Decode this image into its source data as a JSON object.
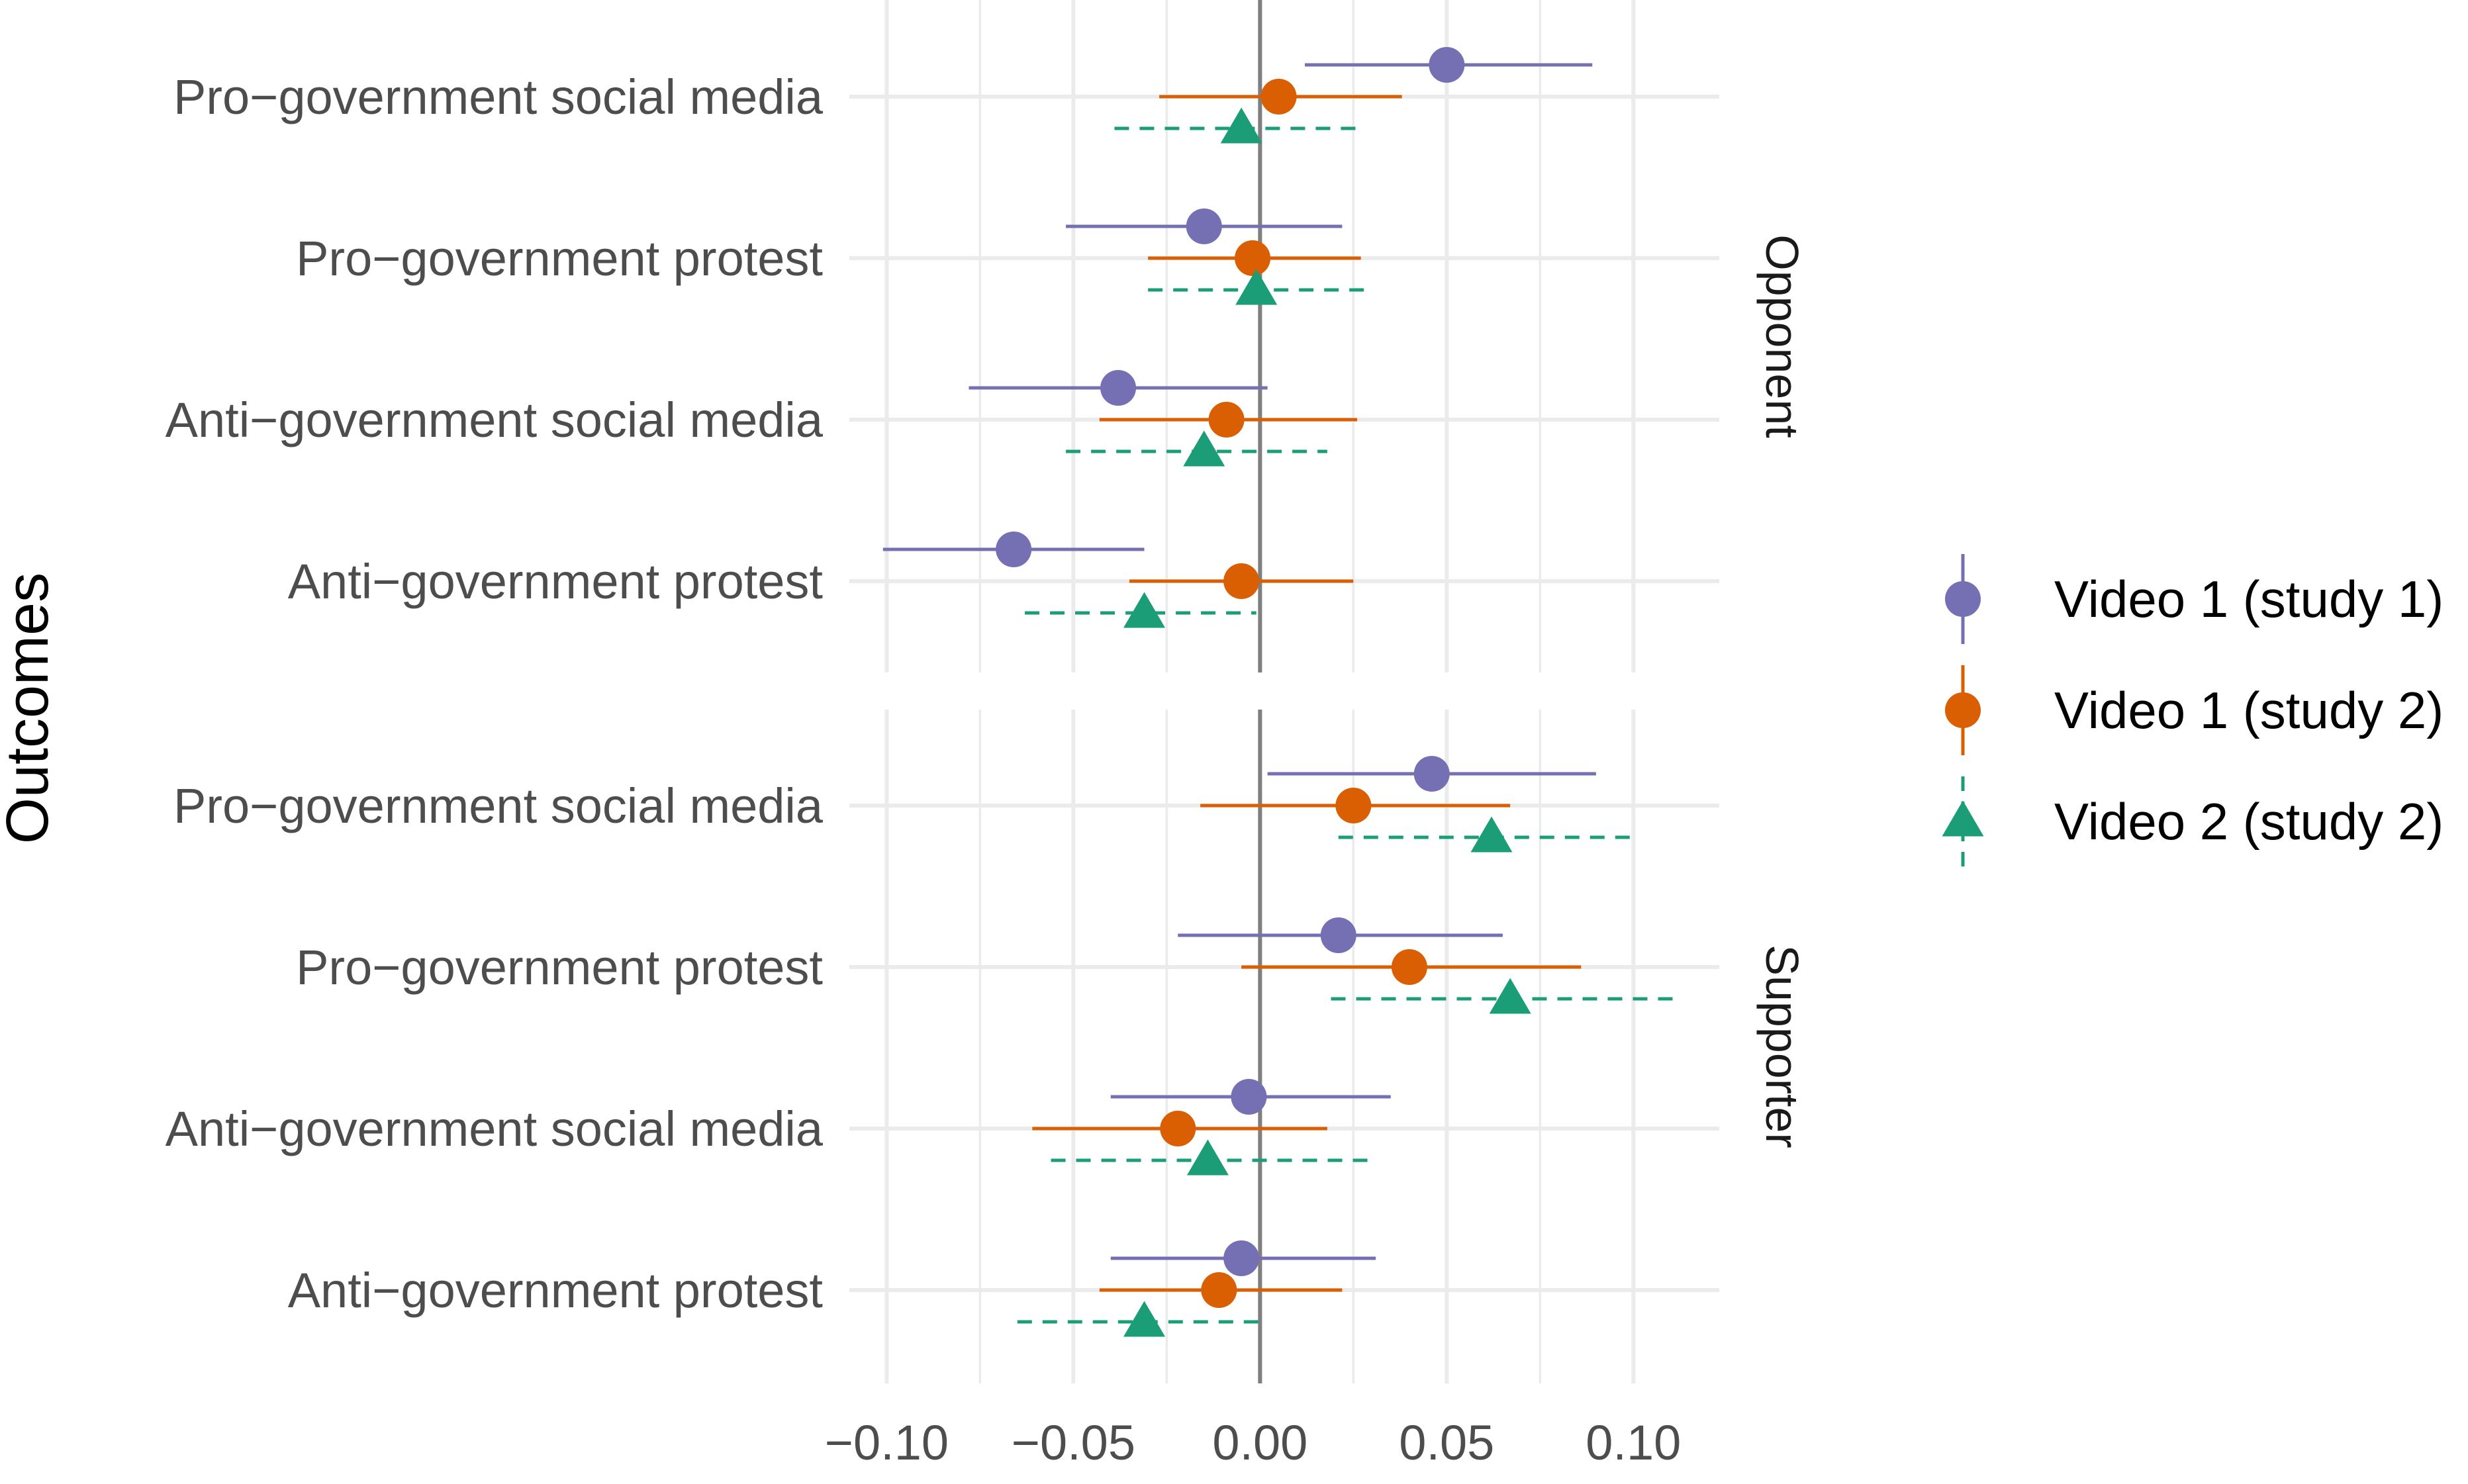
{
  "chart_data": {
    "type": "coefficient-plot",
    "ylabel": "Outcomes",
    "xlim": [
      -0.11,
      0.123
    ],
    "x_ticks": [
      -0.1,
      -0.05,
      0.0,
      0.05,
      0.1
    ],
    "x_tick_labels": [
      "−0.10",
      "−0.05",
      "0.00",
      "0.05",
      "0.10"
    ],
    "reference_line": 0,
    "grid": true,
    "legend_position": "right",
    "outcome_labels": [
      "Pro−government social media",
      "Pro−government protest",
      "Anti−government social media",
      "Anti−government protest"
    ],
    "series": [
      {
        "name": "Video 1 (study 1)",
        "color": "#7570b3",
        "shape": "circle",
        "line": "solid"
      },
      {
        "name": "Video 1 (study 2)",
        "color": "#d95f02",
        "shape": "circle",
        "line": "solid"
      },
      {
        "name": "Video 2 (study 2)",
        "color": "#1b9e77",
        "shape": "triangle",
        "line": "dashed"
      }
    ],
    "panels": [
      {
        "label": "Opponent",
        "estimates": [
          [
            {
              "est": 0.05,
              "lo": 0.012,
              "hi": 0.089
            },
            {
              "est": 0.005,
              "lo": -0.027,
              "hi": 0.038
            },
            {
              "est": -0.005,
              "lo": -0.039,
              "hi": 0.028
            }
          ],
          [
            {
              "est": -0.015,
              "lo": -0.052,
              "hi": 0.022
            },
            {
              "est": -0.002,
              "lo": -0.03,
              "hi": 0.027
            },
            {
              "est": -0.001,
              "lo": -0.03,
              "hi": 0.029
            }
          ],
          [
            {
              "est": -0.038,
              "lo": -0.078,
              "hi": 0.002
            },
            {
              "est": -0.009,
              "lo": -0.043,
              "hi": 0.026
            },
            {
              "est": -0.015,
              "lo": -0.052,
              "hi": 0.018
            }
          ],
          [
            {
              "est": -0.066,
              "lo": -0.101,
              "hi": -0.031
            },
            {
              "est": -0.005,
              "lo": -0.035,
              "hi": 0.025
            },
            {
              "est": -0.031,
              "lo": -0.063,
              "hi": -0.001
            }
          ]
        ]
      },
      {
        "label": "Supporter",
        "estimates": [
          [
            {
              "est": 0.046,
              "lo": 0.002,
              "hi": 0.09
            },
            {
              "est": 0.025,
              "lo": -0.016,
              "hi": 0.067
            },
            {
              "est": 0.062,
              "lo": 0.021,
              "hi": 0.1
            }
          ],
          [
            {
              "est": 0.021,
              "lo": -0.022,
              "hi": 0.065
            },
            {
              "est": 0.04,
              "lo": -0.005,
              "hi": 0.086
            },
            {
              "est": 0.067,
              "lo": 0.019,
              "hi": 0.113
            }
          ],
          [
            {
              "est": -0.003,
              "lo": -0.04,
              "hi": 0.035
            },
            {
              "est": -0.022,
              "lo": -0.061,
              "hi": 0.018
            },
            {
              "est": -0.014,
              "lo": -0.056,
              "hi": 0.029
            }
          ],
          [
            {
              "est": -0.005,
              "lo": -0.04,
              "hi": 0.031
            },
            {
              "est": -0.011,
              "lo": -0.043,
              "hi": 0.022
            },
            {
              "est": -0.031,
              "lo": -0.065,
              "hi": 0.002
            }
          ]
        ]
      }
    ]
  }
}
